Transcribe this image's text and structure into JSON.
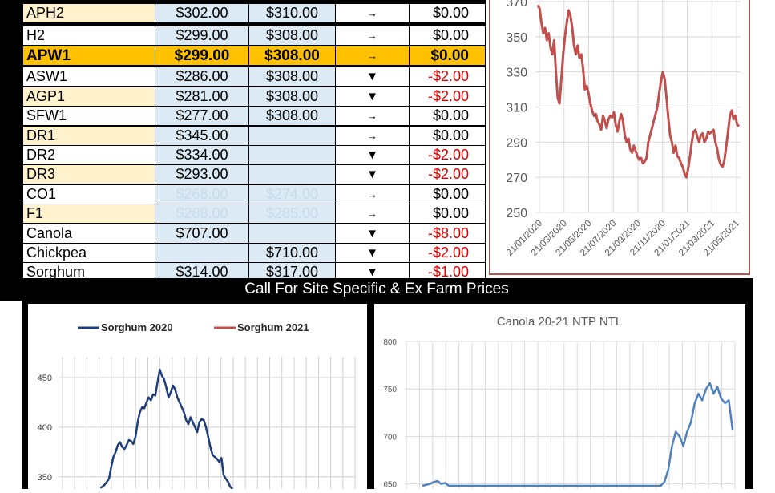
{
  "price_table": {
    "rows": [
      {
        "name": "APH2",
        "bid": "$302.00",
        "ask": "$310.00",
        "dir": "→",
        "change": "$0.00"
      },
      {
        "name": "H2",
        "bid": "$299.00",
        "ask": "$308.00",
        "dir": "→",
        "change": "$0.00"
      },
      {
        "name": "APW1",
        "bid": "$299.00",
        "ask": "$308.00",
        "dir": "→",
        "change": "$0.00"
      },
      {
        "name": "ASW1",
        "bid": "$286.00",
        "ask": "$308.00",
        "dir": "▼",
        "change": "-$2.00"
      },
      {
        "name": "AGP1",
        "bid": "$281.00",
        "ask": "$308.00",
        "dir": "▼",
        "change": "-$2.00"
      },
      {
        "name": "SFW1",
        "bid": "$277.00",
        "ask": "$308.00",
        "dir": "→",
        "change": "$0.00"
      },
      {
        "name": "DR1",
        "bid": "$345.00",
        "ask": "",
        "dir": "→",
        "change": "$0.00"
      },
      {
        "name": "DR2",
        "bid": "$334.00",
        "ask": "",
        "dir": "▼",
        "change": "-$2.00"
      },
      {
        "name": "DR3",
        "bid": "$293.00",
        "ask": "",
        "dir": "▼",
        "change": "-$2.00"
      },
      {
        "name": "CO1",
        "bid": "$268.00",
        "ask": "$274.00",
        "dir": "→",
        "change": "$0.00"
      },
      {
        "name": "F1",
        "bid": "$288.00",
        "ask": "$285.00",
        "dir": "→",
        "change": "$0.00"
      },
      {
        "name": "Canola",
        "bid": "$707.00",
        "ask": "",
        "dir": "▼",
        "change": "-$8.00"
      },
      {
        "name": "Chickpea",
        "bid": "",
        "ask": "$710.00",
        "dir": "▼",
        "change": "-$2.00"
      },
      {
        "name": "Sorghum",
        "bid": "$314.00",
        "ask": "$317.00",
        "dir": "▼",
        "change": "-$1.00"
      }
    ],
    "highlight_row": "APW1",
    "colors": {
      "highlight": "#ffc000",
      "name_shade": "#fff2cc",
      "price_shade": "#dbeaf4",
      "negative": "#e00000"
    }
  },
  "banner": {
    "text": "Call For Site Specific & Ex Farm Prices"
  },
  "chart_data": [
    {
      "id": "apw1-history",
      "type": "line",
      "title": "",
      "xlabel": "",
      "ylabel": "",
      "x_ticks": [
        "21/01/2020",
        "21/03/2020",
        "21/05/2020",
        "21/07/2020",
        "21/09/2020",
        "21/11/2020",
        "21/01/2021",
        "21/03/2021",
        "21/05/2021"
      ],
      "y_ticks": [
        "250",
        "270",
        "290",
        "310",
        "330",
        "350",
        "370"
      ],
      "ylim": [
        250,
        370
      ],
      "grid": true,
      "color": "#c0504d",
      "series": [
        {
          "values": [
            368,
            366,
            358,
            352,
            355,
            348,
            352,
            344,
            340,
            348,
            330,
            315,
            312,
            326,
            340,
            350,
            358,
            365,
            362,
            355,
            345,
            340,
            345,
            338,
            340,
            332,
            320,
            322,
            318,
            312,
            308,
            305,
            306,
            302,
            300,
            297,
            305,
            302,
            298,
            303,
            305,
            304,
            307,
            300,
            296,
            302,
            306,
            302,
            294,
            290,
            292,
            286,
            284,
            288,
            285,
            282,
            280,
            281,
            278,
            279,
            281,
            290,
            294,
            298,
            302,
            306,
            310,
            318,
            325,
            330,
            326,
            316,
            304,
            294,
            290,
            284,
            288,
            282,
            281,
            278,
            276,
            272,
            270,
            275,
            282,
            290,
            296,
            297,
            293,
            290,
            294,
            295,
            290,
            292,
            296,
            295,
            296,
            297,
            290,
            286,
            280,
            277,
            276,
            280,
            288,
            296,
            305,
            308,
            303,
            305,
            300,
            299
          ]
        }
      ]
    },
    {
      "id": "sorghum-seasonal",
      "type": "line",
      "title": "",
      "xlabel": "",
      "ylabel": "",
      "y_ticks": [
        "350",
        "400",
        "450"
      ],
      "ylim": [
        345,
        475
      ],
      "grid": true,
      "legend_position": "top",
      "series": [
        {
          "name": "Sorghum 2020",
          "color": "#1f3d7a",
          "values": [
            339,
            340,
            342,
            345,
            348,
            360,
            370,
            375,
            382,
            385,
            380,
            378,
            382,
            387,
            386,
            383,
            390,
            405,
            415,
            420,
            419,
            425,
            430,
            427,
            433,
            432,
            445,
            458,
            452,
            448,
            440,
            430,
            435,
            442,
            438,
            430,
            425,
            420,
            415,
            407,
            403,
            410,
            405,
            400,
            395,
            405,
            408,
            407,
            400,
            390,
            380,
            372,
            370,
            368,
            365,
            369,
            352,
            348,
            345,
            340,
            338
          ]
        },
        {
          "name": "Sorghum 2021",
          "color": "#c0504d",
          "values": []
        }
      ]
    },
    {
      "id": "canola-ntp",
      "type": "line",
      "title": "Canola 20-21 NTP NTL",
      "xlabel": "",
      "ylabel": "",
      "y_ticks": [
        "650",
        "700",
        "750",
        "800"
      ],
      "ylim": [
        648,
        800
      ],
      "grid": true,
      "series": [
        {
          "values": [
            648,
            649,
            650,
            652,
            653,
            650,
            651,
            648,
            648,
            648,
            648,
            648,
            648,
            648,
            648,
            648,
            648,
            648,
            648,
            648,
            648,
            648,
            648,
            648,
            648,
            648,
            648,
            648,
            648,
            648,
            648,
            648,
            648,
            648,
            648,
            648,
            648,
            648,
            648,
            648,
            648,
            648,
            648,
            648,
            648,
            648,
            648,
            648,
            648,
            648,
            648,
            648,
            648,
            648,
            648,
            648,
            648,
            648,
            648,
            648,
            648,
            648,
            648,
            648,
            652,
            665,
            690,
            705,
            700,
            690,
            705,
            715,
            735,
            745,
            738,
            750,
            756,
            745,
            752,
            740,
            735,
            738,
            707
          ]
        }
      ]
    }
  ]
}
